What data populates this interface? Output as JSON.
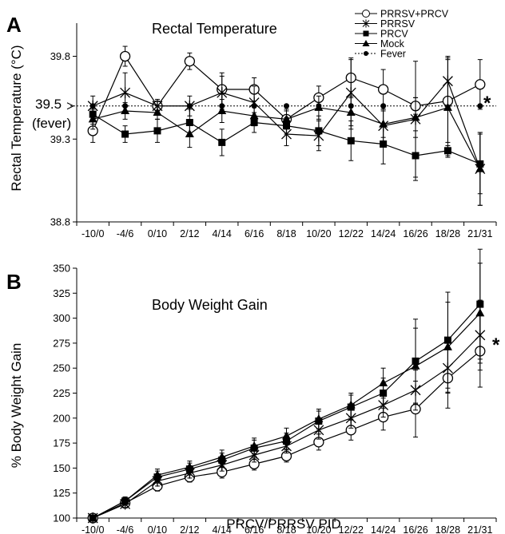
{
  "figure_xlabel": "PRCV/PRRSV PID",
  "chart_data": [
    {
      "panel": "A",
      "type": "line",
      "title": "Rectal Temperature",
      "ylabel": "Rectal Temperature (°C)",
      "ylim": [
        38.8,
        40.0
      ],
      "y_ticks": [
        "39.8",
        "39.3",
        "38.8"
      ],
      "fever_value": 39.5,
      "fever_label_1": "39.5",
      "fever_label_2": "(fever)",
      "significance": "*",
      "categories": [
        "-10/0",
        "-4/6",
        "0/10",
        "2/12",
        "4/14",
        "6/16",
        "8/18",
        "10/20",
        "12/22",
        "14/24",
        "16/26",
        "18/28",
        "21/31"
      ],
      "legend": [
        "PRRSV+PRCV",
        "PRRSV",
        "PRCV",
        "Mock",
        "Fever"
      ],
      "series": [
        {
          "name": "PRRSV+PRCV",
          "marker": "open-circle",
          "values": [
            39.35,
            39.8,
            39.5,
            39.77,
            39.6,
            39.6,
            39.42,
            39.55,
            39.67,
            39.6,
            39.5,
            39.53,
            39.63
          ],
          "err": [
            0.07,
            0.06,
            0.03,
            0.05,
            0.1,
            0.07,
            0.05,
            0.07,
            0.12,
            0.12,
            0.05,
            0.25,
            0.15
          ]
        },
        {
          "name": "PRRSV",
          "marker": "asterisk",
          "values": [
            39.5,
            39.58,
            39.5,
            39.5,
            39.58,
            39.52,
            39.33,
            39.32,
            39.58,
            39.38,
            39.42,
            39.65,
            39.12
          ],
          "err": [
            0.06,
            0.12,
            0.04,
            0.06,
            0.1,
            0.1,
            0.07,
            0.09,
            0.2,
            0.1,
            0.35,
            0.15,
            0.22
          ]
        },
        {
          "name": "PRCV",
          "marker": "filled-square",
          "values": [
            39.45,
            39.33,
            39.35,
            39.4,
            39.28,
            39.4,
            39.38,
            39.35,
            39.29,
            39.27,
            39.2,
            39.23,
            39.15
          ],
          "err": [
            0.06,
            0.05,
            0.07,
            0.08,
            0.08,
            0.06,
            0.05,
            0.09,
            0.12,
            0.12,
            0.15,
            0.03,
            0.18
          ]
        },
        {
          "name": "Mock",
          "marker": "filled-triangle",
          "values": [
            39.42,
            39.47,
            39.46,
            39.33,
            39.47,
            39.44,
            39.42,
            39.49,
            39.46,
            39.39,
            39.43,
            39.49,
            39.12
          ],
          "err": [
            0.06,
            0.05,
            0.04,
            0.08,
            0.07,
            0.06,
            0.06,
            0.07,
            0.1,
            0.08,
            0.12,
            0.3,
            0.22
          ]
        }
      ]
    },
    {
      "panel": "B",
      "type": "line",
      "title": "Body Weight Gain",
      "ylabel": "% Body Weight Gain",
      "ylim": [
        100,
        350
      ],
      "y_ticks": [
        "350",
        "325",
        "300",
        "275",
        "250",
        "225",
        "200",
        "175",
        "150",
        "125",
        "100"
      ],
      "significance": "*",
      "categories": [
        "-10/0",
        "-4/6",
        "0/10",
        "2/12",
        "4/14",
        "6/16",
        "8/18",
        "10/20",
        "12/22",
        "14/24",
        "16/26",
        "18/28",
        "21/31"
      ],
      "series": [
        {
          "name": "PRRSV+PRCV",
          "marker": "open-circle",
          "values": [
            100,
            115,
            132,
            141,
            146,
            154,
            162,
            176,
            188,
            201,
            209,
            240,
            267
          ],
          "err": [
            3,
            4,
            5,
            5,
            6,
            6,
            6,
            8,
            10,
            13,
            28,
            30,
            36
          ]
        },
        {
          "name": "PRRSV",
          "marker": "asterisk",
          "values": [
            100,
            114,
            137,
            145,
            153,
            163,
            172,
            188,
            200,
            213,
            228,
            250,
            283
          ],
          "err": [
            3,
            4,
            5,
            5,
            6,
            7,
            7,
            9,
            10,
            12,
            20,
            25,
            35
          ]
        },
        {
          "name": "PRCV",
          "marker": "filled-square",
          "values": [
            100,
            117,
            141,
            149,
            158,
            170,
            177,
            197,
            211,
            225,
            257,
            278,
            314
          ],
          "err": [
            3,
            4,
            6,
            6,
            7,
            8,
            8,
            10,
            12,
            15,
            42,
            48,
            55
          ]
        },
        {
          "name": "Mock",
          "marker": "filled-triangle",
          "values": [
            100,
            117,
            143,
            151,
            161,
            172,
            182,
            199,
            213,
            235,
            252,
            271,
            305
          ],
          "err": [
            3,
            4,
            6,
            6,
            7,
            8,
            8,
            10,
            12,
            15,
            38,
            45,
            50
          ]
        }
      ]
    }
  ]
}
